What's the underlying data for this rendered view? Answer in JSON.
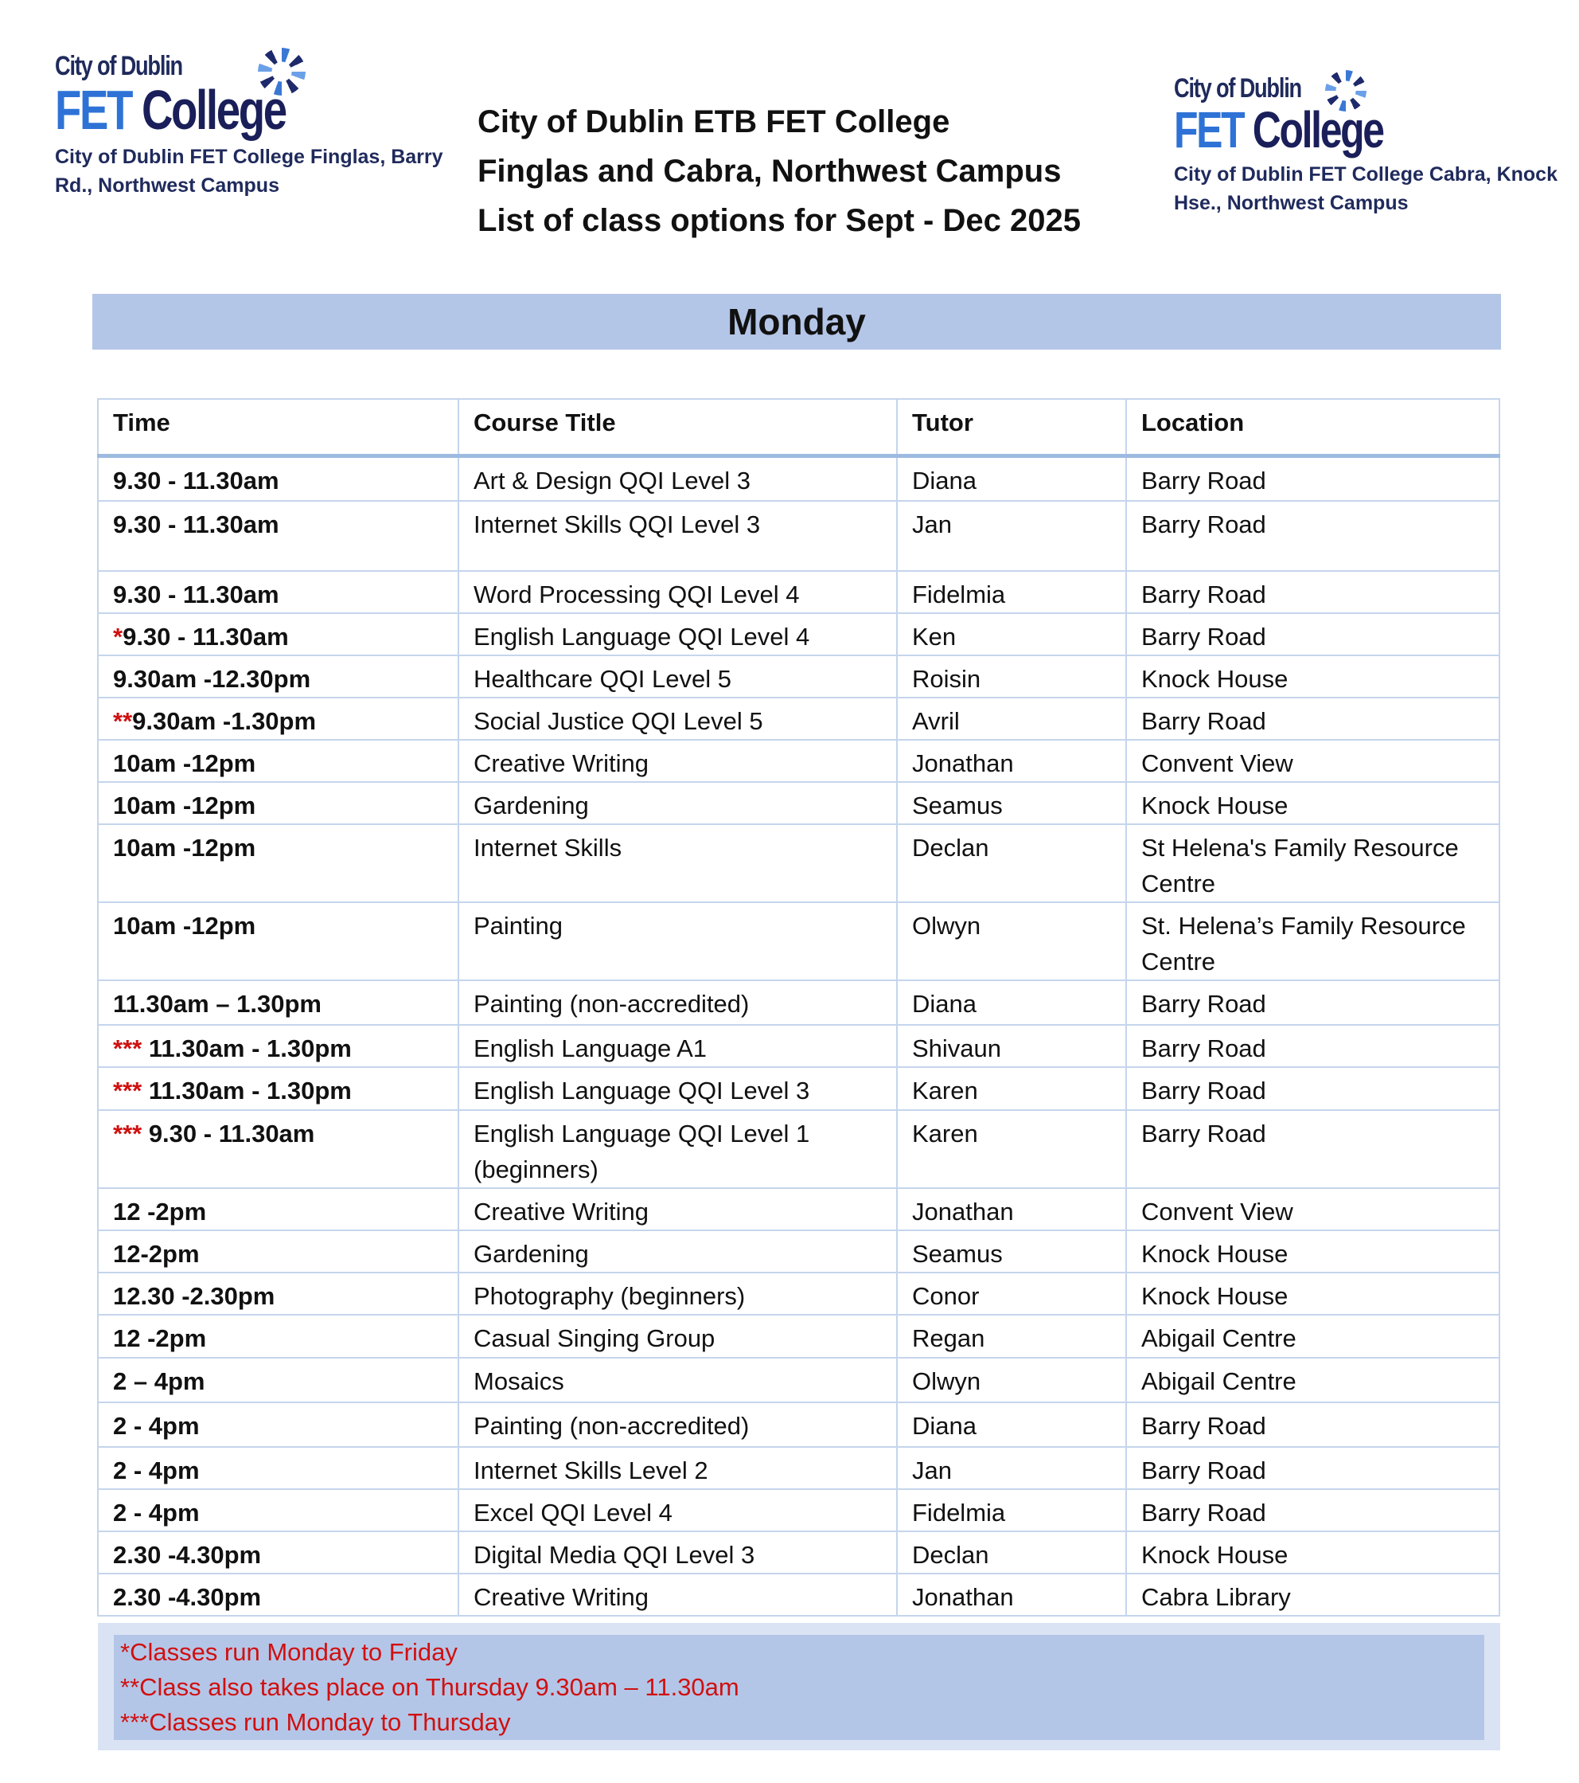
{
  "logos": [
    {
      "line1": "City of Dublin",
      "fet": "FET",
      "college": "College",
      "caption_line1": "City of Dublin FET College Finglas, Barry",
      "caption_line2": "Rd., Northwest Campus"
    },
    {
      "line1": "City of Dublin",
      "fet": "FET",
      "college": "College",
      "caption_line1": "City of Dublin FET College Cabra, Knock",
      "caption_line2": "Hse., Northwest Campus"
    }
  ],
  "header": {
    "lines": [
      "City of Dublin ETB FET College",
      "Finglas and Cabra, Northwest Campus",
      "List of class options for Sept - Dec 2025"
    ]
  },
  "day": "Monday",
  "table": {
    "columns": [
      "Time",
      "Course Title",
      "Tutor",
      "Location"
    ],
    "rows": [
      {
        "mark": "",
        "time": "9.30 - 11.30am",
        "course": "Art & Design QQI Level 3",
        "tutor": "Diana",
        "location": "Barry Road"
      },
      {
        "mark": "",
        "time": "9.30 - 11.30am",
        "course": "Internet Skills QQI Level 3",
        "tutor": "Jan",
        "location": "Barry Road"
      },
      {
        "mark": "",
        "time": "9.30 - 11.30am",
        "course": "Word Processing QQI Level 4",
        "tutor": "Fidelmia",
        "location": "Barry Road"
      },
      {
        "mark": "*",
        "time": "9.30 - 11.30am",
        "course": "English Language QQI Level 4",
        "tutor": "Ken",
        "location": "Barry Road"
      },
      {
        "mark": "",
        "time": "9.30am -12.30pm",
        "course": "Healthcare QQI Level 5",
        "tutor": "Roisin",
        "location": "Knock House"
      },
      {
        "mark": "**",
        "time": "9.30am -1.30pm",
        "course": "Social Justice QQI Level 5",
        "tutor": "Avril",
        "location": "Barry Road"
      },
      {
        "mark": "",
        "time": "10am -12pm",
        "course": "Creative Writing",
        "tutor": "Jonathan",
        "location": "Convent View"
      },
      {
        "mark": "",
        "time": "10am -12pm",
        "course": "Gardening",
        "tutor": "Seamus",
        "location": "Knock House"
      },
      {
        "mark": "",
        "time": "10am -12pm",
        "course": "Internet Skills",
        "tutor": "Declan",
        "location": "St Helena's Family Resource Centre"
      },
      {
        "mark": "",
        "time": "10am -12pm",
        "course": "Painting",
        "tutor": "Olwyn",
        "location": "St. Helena’s Family Resource Centre"
      },
      {
        "mark": "",
        "time": "11.30am – 1.30pm",
        "course": "Painting (non-accredited)",
        "tutor": "Diana",
        "location": "Barry Road"
      },
      {
        "mark": "*** ",
        "time": "11.30am - 1.30pm",
        "course": "English Language A1",
        "tutor": "Shivaun",
        "location": "Barry Road"
      },
      {
        "mark": "*** ",
        "time": "11.30am - 1.30pm",
        "course": "English Language QQI Level 3",
        "tutor": "Karen",
        "location": "Barry Road"
      },
      {
        "mark": "*** ",
        "time": "9.30 - 11.30am",
        "course": "English Language QQI Level 1 (beginners)",
        "tutor": "Karen",
        "location": "Barry Road"
      },
      {
        "mark": "",
        "time": "12 -2pm",
        "course": "Creative Writing",
        "tutor": "Jonathan",
        "location": "Convent View"
      },
      {
        "mark": "",
        "time": "12-2pm",
        "course": "Gardening",
        "tutor": "Seamus",
        "location": "Knock House"
      },
      {
        "mark": "",
        "time": "12.30 -2.30pm",
        "course": "Photography (beginners)",
        "tutor": "Conor",
        "location": "Knock House"
      },
      {
        "mark": "",
        "time": "12 -2pm",
        "course": "Casual Singing Group",
        "tutor": "Regan",
        "location": "Abigail Centre"
      },
      {
        "mark": "",
        "time": "2 – 4pm",
        "course": "Mosaics",
        "tutor": "Olwyn",
        "location": "Abigail Centre"
      },
      {
        "mark": "",
        "time": "2 - 4pm",
        "course": "Painting (non-accredited)",
        "tutor": "Diana",
        "location": "Barry Road"
      },
      {
        "mark": "",
        "time": "2 - 4pm",
        "course": "Internet Skills Level 2",
        "tutor": "Jan",
        "location": "Barry Road"
      },
      {
        "mark": "",
        "time": "2 - 4pm",
        "course": "Excel QQI Level 4",
        "tutor": "Fidelmia",
        "location": "Barry Road"
      },
      {
        "mark": "",
        "time": "2.30 -4.30pm",
        "course": "Digital Media QQI Level 3",
        "tutor": "Declan",
        "location": "Knock House"
      },
      {
        "mark": "",
        "time": "2.30 -4.30pm",
        "course": "Creative Writing",
        "tutor": "Jonathan",
        "location": "Cabra Library"
      }
    ]
  },
  "footnotes": [
    "*Classes run Monday to Friday",
    "**Class also takes place on Thursday 9.30am – 11.30am",
    "***Classes run Monday to Thursday"
  ],
  "colors": {
    "band": "#b4c6e7",
    "footnote_text": "#d01010",
    "asterisk": "#d01010"
  }
}
